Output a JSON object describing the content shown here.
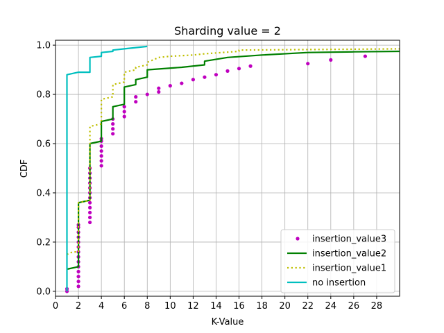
{
  "chart_data": {
    "type": "line",
    "title": "Sharding value = 2",
    "xlabel": "K-Value",
    "ylabel": "CDF",
    "xlim": [
      0,
      30
    ],
    "ylim": [
      -0.02,
      1.02
    ],
    "xticks": [
      "0",
      "2",
      "4",
      "6",
      "8",
      "10",
      "12",
      "14",
      "16",
      "18",
      "20",
      "22",
      "24",
      "26",
      "28"
    ],
    "yticks": [
      "0.0",
      "0.2",
      "0.4",
      "0.6",
      "0.8",
      "1.0"
    ],
    "grid": true,
    "legend_position": "lower-right",
    "series": [
      {
        "name": "insertion_value3",
        "style": "markers",
        "color": "#bf00bf",
        "points": [
          [
            1,
            0.0
          ],
          [
            1,
            0.01
          ],
          [
            2,
            0.02
          ],
          [
            2,
            0.04
          ],
          [
            2,
            0.06
          ],
          [
            2,
            0.08
          ],
          [
            2,
            0.1
          ],
          [
            2,
            0.12
          ],
          [
            2,
            0.14
          ],
          [
            2,
            0.16
          ],
          [
            2,
            0.18
          ],
          [
            2,
            0.2
          ],
          [
            2,
            0.22
          ],
          [
            2,
            0.24
          ],
          [
            2,
            0.26
          ],
          [
            2,
            0.27
          ],
          [
            3,
            0.28
          ],
          [
            3,
            0.3
          ],
          [
            3,
            0.32
          ],
          [
            3,
            0.34
          ],
          [
            3,
            0.36
          ],
          [
            3,
            0.38
          ],
          [
            3,
            0.4
          ],
          [
            3,
            0.42
          ],
          [
            3,
            0.44
          ],
          [
            3,
            0.46
          ],
          [
            3,
            0.48
          ],
          [
            3,
            0.5
          ],
          [
            4,
            0.51
          ],
          [
            4,
            0.53
          ],
          [
            4,
            0.55
          ],
          [
            4,
            0.57
          ],
          [
            4,
            0.59
          ],
          [
            4,
            0.61
          ],
          [
            4,
            0.62
          ],
          [
            5,
            0.64
          ],
          [
            5,
            0.66
          ],
          [
            5,
            0.68
          ],
          [
            5,
            0.7
          ],
          [
            6,
            0.71
          ],
          [
            6,
            0.73
          ],
          [
            6,
            0.75
          ],
          [
            7,
            0.77
          ],
          [
            7,
            0.79
          ],
          [
            8,
            0.8
          ],
          [
            9,
            0.81
          ],
          [
            9,
            0.825
          ],
          [
            10,
            0.835
          ],
          [
            11,
            0.845
          ],
          [
            12,
            0.86
          ],
          [
            13,
            0.87
          ],
          [
            14,
            0.88
          ],
          [
            15,
            0.895
          ],
          [
            16,
            0.905
          ],
          [
            17,
            0.915
          ],
          [
            22,
            0.925
          ],
          [
            24,
            0.94
          ],
          [
            27,
            0.955
          ]
        ]
      },
      {
        "name": "insertion_value2",
        "style": "solid",
        "color": "#008000",
        "points": [
          [
            1,
            0.09
          ],
          [
            2,
            0.1
          ],
          [
            2,
            0.36
          ],
          [
            3,
            0.37
          ],
          [
            3,
            0.6
          ],
          [
            4,
            0.61
          ],
          [
            4,
            0.69
          ],
          [
            5,
            0.7
          ],
          [
            5,
            0.75
          ],
          [
            6,
            0.76
          ],
          [
            6,
            0.83
          ],
          [
            7,
            0.84
          ],
          [
            7,
            0.86
          ],
          [
            8,
            0.87
          ],
          [
            8,
            0.9
          ],
          [
            11,
            0.91
          ],
          [
            13,
            0.92
          ],
          [
            13,
            0.935
          ],
          [
            15,
            0.95
          ],
          [
            18,
            0.96
          ],
          [
            22,
            0.97
          ],
          [
            26,
            0.973
          ],
          [
            30,
            0.975
          ]
        ]
      },
      {
        "name": "insertion_value1",
        "style": "dotted",
        "color": "#bfbf00",
        "points": [
          [
            1,
            0.15
          ],
          [
            1.5,
            0.16
          ],
          [
            2,
            0.16
          ],
          [
            2,
            0.36
          ],
          [
            3,
            0.37
          ],
          [
            3,
            0.67
          ],
          [
            4,
            0.68
          ],
          [
            4,
            0.78
          ],
          [
            5,
            0.79
          ],
          [
            5,
            0.84
          ],
          [
            6,
            0.85
          ],
          [
            6,
            0.89
          ],
          [
            7,
            0.9
          ],
          [
            7,
            0.91
          ],
          [
            8,
            0.92
          ],
          [
            8,
            0.93
          ],
          [
            9,
            0.95
          ],
          [
            10,
            0.955
          ],
          [
            12,
            0.96
          ],
          [
            13,
            0.965
          ],
          [
            16,
            0.975
          ],
          [
            16,
            0.98
          ],
          [
            30,
            0.985
          ]
        ]
      },
      {
        "name": "no insertion",
        "style": "solid",
        "color": "#00bfbf",
        "points": [
          [
            1,
            0.0
          ],
          [
            1,
            0.88
          ],
          [
            2,
            0.89
          ],
          [
            3,
            0.89
          ],
          [
            3,
            0.95
          ],
          [
            4,
            0.955
          ],
          [
            4,
            0.97
          ],
          [
            5,
            0.975
          ],
          [
            5,
            0.98
          ],
          [
            6,
            0.985
          ],
          [
            7,
            0.99
          ],
          [
            8,
            0.995
          ]
        ]
      }
    ]
  }
}
